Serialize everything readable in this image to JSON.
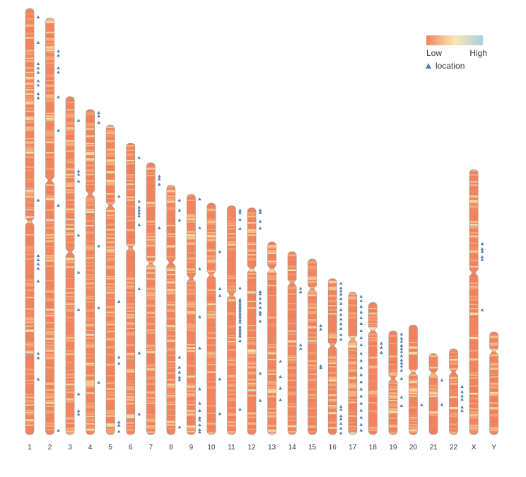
{
  "chart_data": {
    "type": "ideogram",
    "legend": {
      "low_label": "Low",
      "high_label": "High",
      "marker_label": "location",
      "placement": "top-right"
    },
    "colors": {
      "low": "#f2855f",
      "mid": "#fbe7b2",
      "high": "#a8cfe1",
      "marker": "#4a7fb5",
      "outline": "#999999"
    },
    "chromosomes": [
      {
        "name": "1",
        "rel_length": 1.0,
        "centromere": 0.5,
        "markers": [
          0.02,
          0.08,
          0.13,
          0.14,
          0.15,
          0.17,
          0.18,
          0.2,
          0.21,
          0.45,
          0.58,
          0.59,
          0.6,
          0.61,
          0.64,
          0.81,
          0.82,
          0.87
        ]
      },
      {
        "name": "2",
        "rel_length": 0.978,
        "centromere": 0.39,
        "markers": [
          0.08,
          0.09,
          0.12,
          0.13,
          0.19,
          0.27,
          0.45,
          0.99
        ]
      },
      {
        "name": "3",
        "rel_length": 0.793,
        "centromere": 0.46,
        "markers": [
          0.07,
          0.22,
          0.23,
          0.25,
          0.41,
          0.52,
          0.63,
          0.88,
          0.93,
          0.94
        ]
      },
      {
        "name": "4",
        "rel_length": 0.763,
        "centromere": 0.26,
        "markers": [
          0.01,
          0.02,
          0.04,
          0.42,
          0.61,
          0.84
        ]
      },
      {
        "name": "5",
        "rel_length": 0.726,
        "centromere": 0.26,
        "markers": [
          0.23,
          0.57,
          0.75,
          0.77,
          0.96,
          0.97,
          0.99
        ]
      },
      {
        "name": "6",
        "rel_length": 0.684,
        "centromere": 0.36,
        "markers": [
          0.05,
          0.2,
          0.22,
          0.23,
          0.24,
          0.25,
          0.28,
          0.5,
          0.72,
          0.93
        ]
      },
      {
        "name": "7",
        "rel_length": 0.638,
        "centromere": 0.37,
        "markers": [
          0.05,
          0.06,
          0.08,
          0.24
        ]
      },
      {
        "name": "8",
        "rel_length": 0.585,
        "centromere": 0.31,
        "markers": [
          0.06,
          0.1,
          0.14,
          0.69,
          0.73,
          0.75,
          0.77,
          0.78,
          0.97
        ]
      },
      {
        "name": "9",
        "rel_length": 0.564,
        "centromere": 0.35,
        "markers": [
          0.02,
          0.14,
          0.31,
          0.51,
          0.64,
          0.81,
          0.87,
          0.9,
          0.93,
          0.94,
          0.96,
          0.98,
          0.99
        ]
      },
      {
        "name": "10",
        "rel_length": 0.543,
        "centromere": 0.31,
        "markers": [
          0.21,
          0.37,
          0.4,
          0.76,
          0.91
        ]
      },
      {
        "name": "11",
        "rel_length": 0.537,
        "centromere": 0.39,
        "markers": [
          0.02,
          0.03,
          0.06,
          0.1,
          0.36,
          0.41,
          0.42,
          0.43,
          0.44,
          0.45,
          0.46,
          0.47,
          0.48,
          0.49,
          0.5,
          0.51,
          0.53,
          0.54,
          0.55,
          0.56,
          0.57,
          0.59,
          0.89
        ]
      },
      {
        "name": "12",
        "rel_length": 0.532,
        "centromere": 0.27,
        "markers": [
          0.01,
          0.02,
          0.06,
          0.09,
          0.37,
          0.38,
          0.4,
          0.42,
          0.44,
          0.46,
          0.47,
          0.5,
          0.73,
          0.85
        ]
      },
      {
        "name": "13",
        "rel_length": 0.452,
        "centromere": 0.14,
        "markers": [
          0.62,
          0.7,
          0.76,
          0.82
        ]
      },
      {
        "name": "14",
        "rel_length": 0.429,
        "centromere": 0.17,
        "markers": [
          0.2,
          0.22,
          0.51,
          0.53
        ]
      },
      {
        "name": "15",
        "rel_length": 0.412,
        "centromere": 0.17,
        "markers": [
          0.38,
          0.4,
          0.61,
          0.62
        ]
      },
      {
        "name": "16",
        "rel_length": 0.366,
        "centromere": 0.43,
        "markers": [
          0.03,
          0.06,
          0.08,
          0.1,
          0.13,
          0.16,
          0.2,
          0.23,
          0.26,
          0.29,
          0.32,
          0.36,
          0.39,
          0.82,
          0.84,
          0.88,
          0.9,
          0.93,
          0.96,
          0.99
        ]
      },
      {
        "name": "17",
        "rel_length": 0.334,
        "centromere": 0.33,
        "markers": [
          0.03,
          0.06,
          0.1,
          0.14,
          0.18,
          0.22,
          0.27,
          0.32,
          0.37,
          0.43,
          0.48,
          0.53,
          0.58,
          0.63,
          0.68,
          0.73,
          0.78,
          0.83,
          0.88,
          0.93,
          0.97
        ]
      },
      {
        "name": "18",
        "rel_length": 0.31,
        "centromere": 0.21,
        "markers": [
          0.31,
          0.34,
          0.38
        ]
      },
      {
        "name": "19",
        "rel_length": 0.243,
        "centromere": 0.46,
        "markers": [
          0.03,
          0.07,
          0.1,
          0.14,
          0.17,
          0.2,
          0.24,
          0.28,
          0.31,
          0.34,
          0.38,
          0.46,
          0.64,
          0.72
        ]
      },
      {
        "name": "20",
        "rel_length": 0.257,
        "centromere": 0.43,
        "markers": [
          0.73
        ]
      },
      {
        "name": "21",
        "rel_length": 0.19,
        "centromere": 0.24,
        "markers": [
          0.33,
          0.63
        ]
      },
      {
        "name": "22",
        "rel_length": 0.201,
        "centromere": 0.27,
        "markers": [
          0.44,
          0.5,
          0.55,
          0.59,
          0.68,
          0.72
        ]
      },
      {
        "name": "X",
        "rel_length": 0.622,
        "centromere": 0.39,
        "markers": [
          0.28,
          0.3,
          0.31,
          0.33,
          0.34,
          0.53
        ]
      },
      {
        "name": "Y",
        "rel_length": 0.241,
        "centromere": 0.19,
        "markers": []
      }
    ]
  }
}
